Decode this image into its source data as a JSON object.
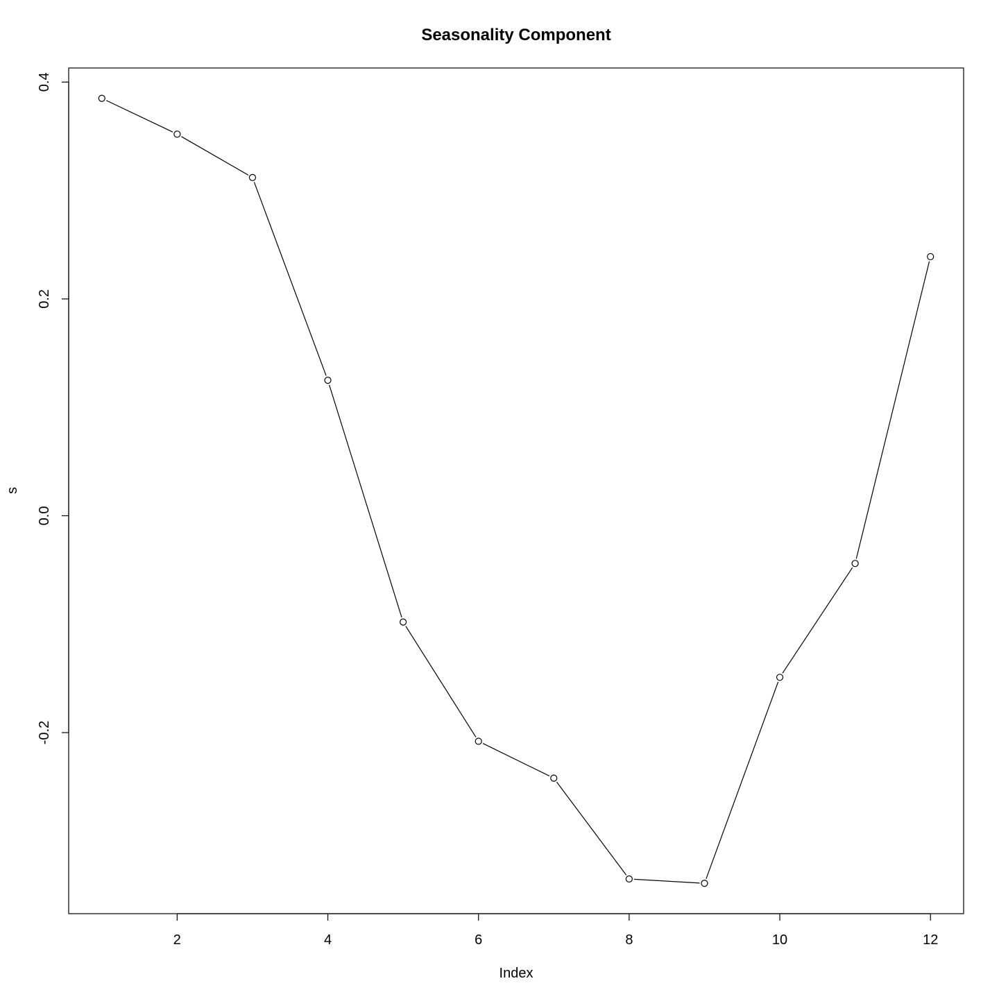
{
  "chart_data": {
    "type": "line",
    "title": "Seasonality Component",
    "xlabel": "Index",
    "ylabel": "s",
    "x": [
      1,
      2,
      3,
      4,
      5,
      6,
      7,
      8,
      9,
      10,
      11,
      12
    ],
    "values": [
      0.385,
      0.352,
      0.312,
      0.125,
      -0.098,
      -0.208,
      -0.242,
      -0.335,
      -0.339,
      -0.149,
      -0.044,
      0.239
    ],
    "xlim": [
      0.56,
      12.44
    ],
    "ylim": [
      -0.367,
      0.413
    ],
    "x_ticks": [
      2,
      4,
      6,
      8,
      10,
      12
    ],
    "x_tick_labels": [
      "2",
      "4",
      "6",
      "8",
      "10",
      "12"
    ],
    "y_ticks": [
      -0.2,
      0.0,
      0.2,
      0.4
    ],
    "y_tick_labels": [
      "-0.2",
      "0.0",
      "0.2",
      "0.4"
    ],
    "grid": false,
    "marker": "open-circle",
    "line_color": "#000000"
  }
}
